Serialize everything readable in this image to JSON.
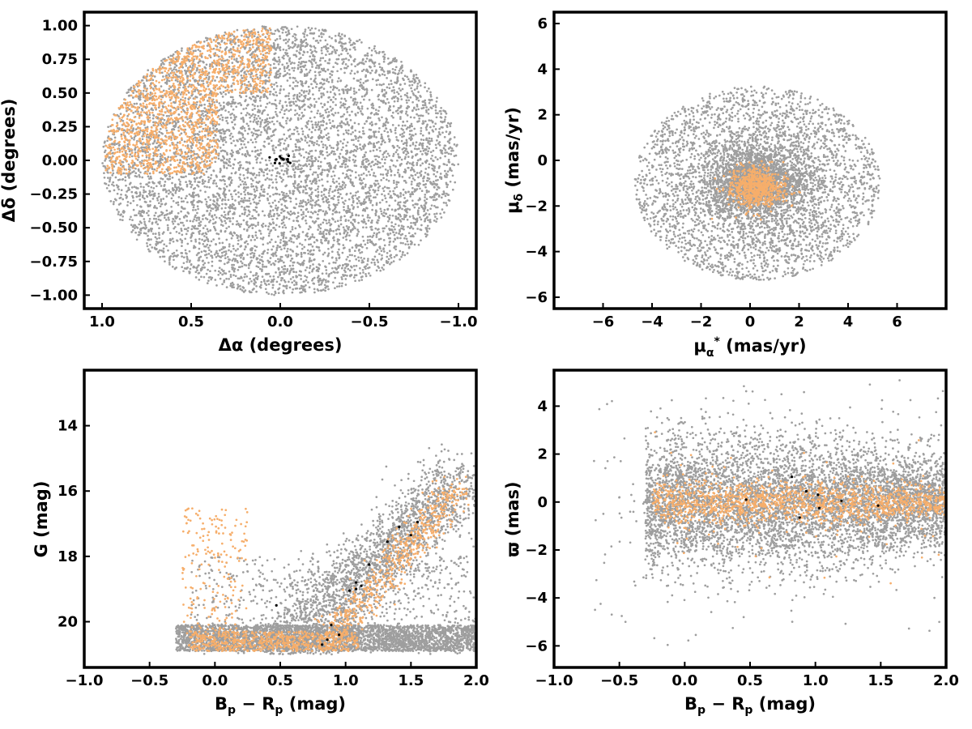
{
  "colors": {
    "field": "#9e9e9e",
    "members": "#f6ae6b",
    "members_dark": "#d98c5c",
    "core": "#000000",
    "frame": "#000000"
  },
  "chart_data": [
    {
      "type": "scatter",
      "panel": "spatial",
      "xlabel": "Δα (degrees)",
      "ylabel": "Δδ (degrees)",
      "xlim": [
        1.1,
        -1.1
      ],
      "ylim": [
        -1.1,
        1.1
      ],
      "xticks": [
        1.0,
        0.5,
        0.0,
        -0.5,
        -1.0
      ],
      "xtick_labels": [
        "1.0",
        "0.5",
        "0.0",
        "−0.5",
        "−1.0"
      ],
      "yticks": [
        -1.0,
        -0.75,
        -0.5,
        -0.25,
        0.0,
        0.25,
        0.5,
        0.75,
        1.0
      ],
      "ytick_labels": [
        "−1.00",
        "−0.75",
        "−0.50",
        "−0.25",
        "0.00",
        "0.25",
        "0.50",
        "0.75",
        "1.00"
      ],
      "grid": false,
      "series": [
        {
          "role": "field",
          "color": "#9e9e9e",
          "description_points": "uniform within radius 1.0 deg",
          "n": 6500,
          "model": "disk",
          "center": [
            0,
            0
          ],
          "radius": 1.0
        },
        {
          "role": "members",
          "color": "#f6ae6b",
          "n": 1500,
          "model": "region",
          "x_range": [
            0.05,
            1.0
          ],
          "y_range": [
            -0.1,
            1.0
          ]
        },
        {
          "role": "core",
          "color": "#000000",
          "n": 14,
          "model": "cluster",
          "center": [
            0.0,
            0.0
          ],
          "spread": [
            0.05,
            0.02
          ]
        }
      ]
    },
    {
      "type": "scatter",
      "panel": "proper-motion",
      "xlabel": "μα* (mas/yr)",
      "ylabel": "μδ (mas/yr)",
      "xlim": [
        -8,
        8
      ],
      "ylim": [
        -6.5,
        6.5
      ],
      "xticks": [
        -6,
        -4,
        -2,
        0,
        2,
        4,
        6
      ],
      "xtick_labels": [
        "−6",
        "−4",
        "−2",
        "0",
        "2",
        "4",
        "6"
      ],
      "yticks": [
        -6,
        -4,
        -2,
        0,
        2,
        4,
        6
      ],
      "ytick_labels": [
        "−6",
        "−4",
        "−2",
        "0",
        "2",
        "4",
        "6"
      ],
      "grid": false,
      "series": [
        {
          "role": "field",
          "color": "#9e9e9e",
          "n": 6000,
          "model": "disk_concentrated",
          "center": [
            0.3,
            -1.0
          ],
          "radius": 5.0
        },
        {
          "role": "members",
          "color": "#f6ae6b",
          "n": 700,
          "model": "gaussian",
          "center": [
            0.3,
            -1.2
          ],
          "sigma": [
            0.55,
            0.45
          ]
        }
      ]
    },
    {
      "type": "scatter",
      "panel": "color-magnitude",
      "xlabel": "Bp − Rp (mag)",
      "ylabel": "G (mag)",
      "xlim": [
        -1.0,
        2.0
      ],
      "ylim": [
        21.4,
        12.3
      ],
      "xticks": [
        -1.0,
        -0.5,
        0.0,
        0.5,
        1.0,
        1.5,
        2.0
      ],
      "xtick_labels": [
        "−1.0",
        "−0.5",
        "0.0",
        "0.5",
        "1.0",
        "1.5",
        "2.0"
      ],
      "yticks": [
        14,
        16,
        18,
        20
      ],
      "ytick_labels": [
        "14",
        "16",
        "18",
        "20"
      ],
      "grid": false,
      "series": [
        {
          "role": "field",
          "color": "#9e9e9e",
          "n": 6000,
          "model": "cmd_field"
        },
        {
          "role": "members",
          "color": "#f6ae6b",
          "n": 1400,
          "model": "cmd_members"
        },
        {
          "role": "core",
          "color": "#000000",
          "points": [
            [
              0.82,
              20.7
            ],
            [
              0.86,
              20.55
            ],
            [
              0.95,
              20.4
            ],
            [
              0.89,
              20.1
            ],
            [
              0.47,
              19.5
            ],
            [
              1.03,
              19.05
            ],
            [
              1.08,
              19.0
            ],
            [
              1.12,
              18.9
            ],
            [
              1.18,
              18.25
            ],
            [
              1.32,
              17.55
            ],
            [
              1.41,
              17.1
            ],
            [
              1.5,
              17.35
            ],
            [
              1.08,
              18.8
            ],
            [
              1.55,
              16.95
            ]
          ]
        }
      ]
    },
    {
      "type": "scatter",
      "panel": "parallax",
      "xlabel": "Bp − Rp (mag)",
      "ylabel": "ϖ (mas)",
      "xlim": [
        -1.0,
        2.0
      ],
      "ylim": [
        -6.9,
        5.5
      ],
      "xticks": [
        -1.0,
        -0.5,
        0.0,
        0.5,
        1.0,
        1.5,
        2.0
      ],
      "xtick_labels": [
        "−1.0",
        "−0.5",
        "0.0",
        "0.5",
        "1.0",
        "1.5",
        "2.0"
      ],
      "yticks": [
        -6,
        -4,
        -2,
        0,
        2,
        4
      ],
      "ytick_labels": [
        "−6",
        "−4",
        "−2",
        "0",
        "2",
        "4"
      ],
      "grid": false,
      "series": [
        {
          "role": "field",
          "color": "#9e9e9e",
          "n": 6000,
          "model": "plx_field"
        },
        {
          "role": "members",
          "color": "#f6ae6b",
          "n": 1400,
          "model": "plx_members"
        },
        {
          "role": "core",
          "color": "#000000",
          "points": [
            [
              0.47,
              0.1
            ],
            [
              0.82,
              1.05
            ],
            [
              0.88,
              -0.65
            ],
            [
              0.93,
              0.45
            ],
            [
              1.03,
              -0.25
            ],
            [
              1.2,
              0.05
            ],
            [
              1.48,
              -0.15
            ],
            [
              1.02,
              0.3
            ]
          ]
        }
      ]
    }
  ]
}
